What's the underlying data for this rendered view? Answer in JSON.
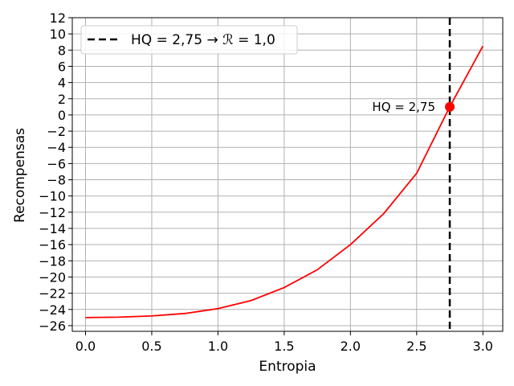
{
  "colors": {
    "line": "#ff0000",
    "marker": "#ff0000",
    "vline": "#000000",
    "grid": "#b0b0b0",
    "axes": "#000000"
  },
  "chart_data": {
    "type": "line",
    "title": "",
    "xlabel": "Entropia",
    "ylabel": "Recompensas",
    "xlim": [
      -0.1,
      3.15
    ],
    "ylim": [
      -26.7,
      12
    ],
    "xticks": [
      0.0,
      0.5,
      1.0,
      1.5,
      2.0,
      2.5,
      3.0
    ],
    "xtick_labels": [
      "0.0",
      "0.5",
      "1.0",
      "1.5",
      "2.0",
      "2.5",
      "3.0"
    ],
    "yticks": [
      12,
      10,
      8,
      6,
      4,
      2,
      0,
      -2,
      -4,
      -6,
      -8,
      -10,
      -12,
      -14,
      -16,
      -18,
      -20,
      -22,
      -24,
      -26
    ],
    "ytick_labels": [
      "12",
      "10",
      "8",
      "6",
      "4",
      "2",
      "0",
      "−2",
      "−4",
      "−6",
      "−8",
      "−10",
      "−12",
      "−14",
      "−16",
      "−18",
      "−20",
      "−22",
      "−24",
      "−26"
    ],
    "grid": true,
    "series": [
      {
        "x": [
          0.0,
          0.25,
          0.5,
          0.75,
          1.0,
          1.25,
          1.5,
          1.75,
          2.0,
          2.25,
          2.5,
          2.75,
          3.0
        ],
        "y": [
          -25.0,
          -24.95,
          -24.8,
          -24.5,
          -23.9,
          -22.9,
          -21.3,
          -19.1,
          -16.0,
          -12.2,
          -7.2,
          1.0,
          8.5
        ]
      }
    ],
    "vline": {
      "x": 2.75,
      "style": "dashed"
    },
    "point": {
      "x": 2.75,
      "y": 1.0
    },
    "legend": {
      "position": "top-left",
      "label": "HQ = 2,75 → ℛ = 1,0"
    },
    "annotation": {
      "text": "HQ = 2,75",
      "x": 2.75,
      "y": 1.0,
      "position": "left"
    }
  }
}
